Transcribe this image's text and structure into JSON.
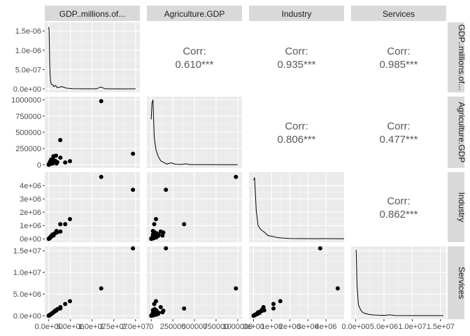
{
  "chart_data": {
    "type": "scatter-matrix",
    "variables": [
      "GDP..millions.of...",
      "Agriculture.GDP",
      "Industry",
      "Services"
    ],
    "col_strips": [
      "GDP..millions.of...",
      "Agriculture.GDP",
      "Industry",
      "Services"
    ],
    "row_strips": [
      "GDP..millions.of...",
      "Agriculture.GDP",
      "Industry",
      "Services"
    ],
    "correlations": [
      {
        "row": 0,
        "col": 1,
        "label": "Corr:",
        "value": "0.610***"
      },
      {
        "row": 0,
        "col": 2,
        "label": "Corr:",
        "value": "0.935***"
      },
      {
        "row": 0,
        "col": 3,
        "label": "Corr:",
        "value": "0.985***"
      },
      {
        "row": 1,
        "col": 2,
        "label": "Corr:",
        "value": "0.806***"
      },
      {
        "row": 1,
        "col": 3,
        "label": "Corr:",
        "value": "0.477***"
      },
      {
        "row": 2,
        "col": 3,
        "label": "Corr:",
        "value": "0.862***"
      }
    ],
    "y_ticks": [
      {
        "row": 0,
        "values": [
          0,
          5e-07,
          1e-06,
          1.5e-06
        ],
        "labels": [
          "0.0e+00",
          "5.0e-07",
          "1.0e-06",
          "1.5e-06"
        ],
        "range": [
          -9e-08,
          1.72e-06
        ]
      },
      {
        "row": 1,
        "values": [
          0,
          250000,
          500000,
          750000,
          1000000
        ],
        "labels": [
          "0",
          "250000",
          "500000",
          "750000",
          "1000000"
        ],
        "range": [
          -50000,
          1050000
        ]
      },
      {
        "row": 2,
        "values": [
          0,
          1000000,
          2000000,
          3000000,
          4000000
        ],
        "labels": [
          "0e+00",
          "1e+06",
          "2e+06",
          "3e+06",
          "4e+06"
        ],
        "range": [
          -250000,
          5000000
        ]
      },
      {
        "row": 3,
        "values": [
          0,
          5000000,
          10000000,
          15000000
        ],
        "labels": [
          "0.0e+00",
          "5.0e+06",
          "1.0e+07",
          "1.5e+07"
        ],
        "range": [
          -800000,
          16000000
        ]
      }
    ],
    "x_ticks": [
      {
        "col": 0,
        "values": [
          0,
          5000000,
          10000000,
          15000000,
          20000000
        ],
        "labels": [
          "0.0e+00",
          "5.0e+06",
          "1.0e+07",
          "1.5e+07",
          "2.0e+07"
        ],
        "range": [
          -900000,
          21000000
        ]
      },
      {
        "col": 1,
        "values": [
          0,
          250000,
          500000,
          750000,
          1000000
        ],
        "labels": [
          "0",
          "250000",
          "500000",
          "750000",
          "1000000"
        ],
        "range": [
          -50000,
          1050000
        ]
      },
      {
        "col": 2,
        "values": [
          0,
          1000000,
          2000000,
          3000000,
          4000000
        ],
        "labels": [
          "0e+00",
          "1e+06",
          "2e+06",
          "3e+06",
          "4e+06"
        ],
        "range": [
          -250000,
          5000000
        ]
      },
      {
        "col": 3,
        "values": [
          0,
          5000000,
          10000000,
          15000000
        ],
        "labels": [
          "0.0e+00",
          "5.0e+06",
          "1.0e+07",
          "1.5e+07"
        ],
        "range": [
          -800000,
          16000000
        ]
      }
    ],
    "x_tick_visible_labels": [
      [
        "0.0e+00",
        "5.0e+06",
        "1.0e+07",
        "1.5e+07",
        "2.0e+07"
      ],
      [
        "0",
        "250000",
        "500000",
        "750000",
        "1000000"
      ],
      [
        "0e+00",
        "1e+06",
        "2e+06",
        "3e+06",
        "4e+06"
      ],
      [
        "0.0e+00",
        "5.0e+06",
        "1.0e+07",
        "1.5e+07"
      ]
    ],
    "densities": [
      {
        "diag": 0,
        "points": [
          [
            0,
            1.6e-06
          ],
          [
            100000,
            1.5e-06
          ],
          [
            250000,
            6e-07
          ],
          [
            400000,
            2.2e-07
          ],
          [
            600000,
            1.2e-07
          ],
          [
            900000,
            1.1e-07
          ],
          [
            1200000,
            6e-08
          ],
          [
            1600000,
            9e-08
          ],
          [
            2000000,
            3e-08
          ],
          [
            3000000,
            6e-08
          ],
          [
            4000000,
            2e-08
          ],
          [
            5500000,
            4e-09
          ],
          [
            8000000,
            2e-09
          ],
          [
            11000000,
            2e-09
          ],
          [
            12000000,
            5e-08
          ],
          [
            13000000,
            2e-09
          ],
          [
            17000000,
            1e-09
          ],
          [
            20000000,
            2e-09
          ]
        ]
      },
      {
        "diag": 1,
        "points": [
          [
            0,
            700000
          ],
          [
            8000,
            950000
          ],
          [
            20000,
            1000000
          ],
          [
            35000,
            430000
          ],
          [
            55000,
            230000
          ],
          [
            80000,
            130000
          ],
          [
            110000,
            60000
          ],
          [
            140000,
            40000
          ],
          [
            180000,
            10000
          ],
          [
            230000,
            30000
          ],
          [
            280000,
            8000
          ],
          [
            350000,
            5000
          ],
          [
            400000,
            15000
          ],
          [
            450000,
            3000
          ],
          [
            600000,
            3000
          ],
          [
            800000,
            2000
          ],
          [
            1000000,
            2000
          ]
        ]
      },
      {
        "diag": 2,
        "points": [
          [
            0,
            4400000
          ],
          [
            60000,
            4600000
          ],
          [
            150000,
            2100000
          ],
          [
            250000,
            1000000
          ],
          [
            400000,
            700000
          ],
          [
            600000,
            500000
          ],
          [
            800000,
            250000
          ],
          [
            1000000,
            200000
          ],
          [
            1300000,
            100000
          ],
          [
            1600000,
            60000
          ],
          [
            2000000,
            30000
          ],
          [
            2600000,
            20000
          ],
          [
            3600000,
            15000
          ],
          [
            4000000,
            20000
          ],
          [
            4500000,
            10000
          ],
          [
            5000000,
            10000
          ]
        ]
      },
      {
        "diag": 3,
        "points": [
          [
            0,
            15200000
          ],
          [
            100000,
            15000000
          ],
          [
            250000,
            7000000
          ],
          [
            500000,
            2500000
          ],
          [
            900000,
            1300000
          ],
          [
            1300000,
            700000
          ],
          [
            1800000,
            500000
          ],
          [
            2500000,
            250000
          ],
          [
            3500000,
            150000
          ],
          [
            5000000,
            80000
          ],
          [
            6000000,
            200000
          ],
          [
            7000000,
            60000
          ],
          [
            10000000,
            30000
          ],
          [
            13000000,
            20000
          ],
          [
            15500000,
            20000
          ]
        ]
      }
    ],
    "records": [
      [
        19400000,
        170000,
        3680000,
        15540000
      ],
      [
        12100000,
        980000,
        4650000,
        6300000
      ],
      [
        2670000,
        380000,
        1100000,
        1650000
      ],
      [
        4900000,
        55000,
        1480000,
        3360000
      ],
      [
        3800000,
        35000,
        1100000,
        2700000
      ],
      [
        2000000,
        40000,
        500000,
        1520000
      ],
      [
        2700000,
        110000,
        550000,
        2000000
      ],
      [
        1700000,
        140000,
        480000,
        1150000
      ],
      [
        1800000,
        20000,
        590000,
        1250000
      ],
      [
        1500000,
        60000,
        420000,
        1200000
      ],
      [
        1300000,
        35000,
        380000,
        950000
      ],
      [
        1100000,
        130000,
        250000,
        800000
      ],
      [
        900000,
        20000,
        330000,
        650000
      ],
      [
        700000,
        50000,
        200000,
        500000
      ],
      [
        500000,
        20000,
        150000,
        350000
      ],
      [
        350000,
        10000,
        90000,
        250000
      ],
      [
        250000,
        30000,
        60000,
        160000
      ],
      [
        150000,
        8000,
        40000,
        100000
      ],
      [
        80000,
        5000,
        20000,
        60000
      ],
      [
        40000,
        2000,
        10000,
        30000
      ],
      [
        20000,
        1000,
        5000,
        15000
      ],
      [
        10000,
        1000,
        3000,
        7000
      ],
      [
        600000,
        80000,
        220000,
        420000
      ],
      [
        450000,
        60000,
        120000,
        300000
      ],
      [
        300000,
        45000,
        100000,
        220000
      ],
      [
        1000000,
        85000,
        320000,
        680000
      ],
      [
        220000,
        25000,
        60000,
        140000
      ],
      [
        120000,
        15000,
        30000,
        80000
      ]
    ]
  }
}
